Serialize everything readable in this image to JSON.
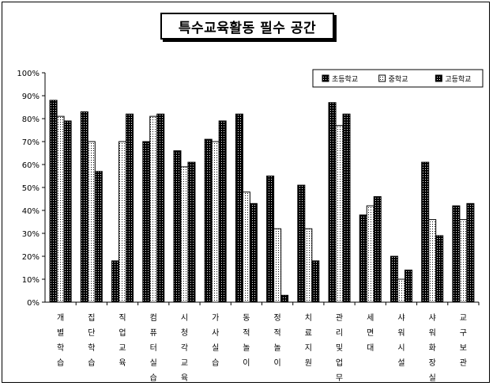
{
  "chart_data": {
    "type": "bar",
    "title": "특수교육활동 필수 공간",
    "xlabel": "",
    "ylabel": "",
    "ylim": [
      0,
      100
    ],
    "y_ticks": [
      "0%",
      "10%",
      "20%",
      "30%",
      "40%",
      "50%",
      "60%",
      "70%",
      "80%",
      "90%",
      "100%"
    ],
    "legend_position": "top-right",
    "grid": false,
    "categories": [
      "개별학습",
      "집단학습",
      "직업교육",
      "컴퓨터실습",
      "시청각교육",
      "가사실습",
      "동적놀이",
      "정적놀이",
      "치료지원",
      "관리및업무",
      "세면대",
      "샤워시설",
      "샤워화장실",
      "교구보관"
    ],
    "series": [
      {
        "name": "초등학교",
        "pattern": "dark-dots",
        "values": [
          88,
          83,
          18,
          70,
          66,
          71,
          82,
          55,
          51,
          87,
          38,
          20,
          61,
          42
        ]
      },
      {
        "name": "중학교",
        "pattern": "light-dots",
        "values": [
          81,
          70,
          70,
          81,
          59,
          70,
          48,
          32,
          32,
          77,
          42,
          10,
          36,
          36
        ]
      },
      {
        "name": "고등학교",
        "pattern": "dark-dots",
        "values": [
          79,
          57,
          82,
          82,
          61,
          79,
          43,
          3,
          18,
          82,
          46,
          14,
          29,
          43
        ]
      }
    ]
  }
}
